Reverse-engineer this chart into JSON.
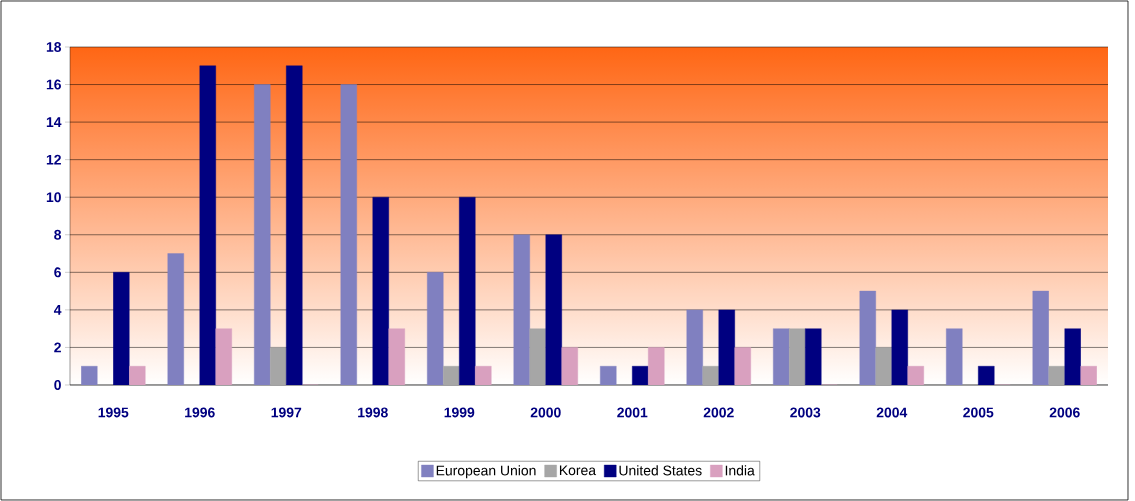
{
  "chart_data": {
    "type": "bar",
    "categories": [
      "1995",
      "1996",
      "1997",
      "1998",
      "1999",
      "2000",
      "2001",
      "2002",
      "2003",
      "2004",
      "2005",
      "2006"
    ],
    "series": [
      {
        "name": "European Union",
        "color": "#8080c0",
        "values": [
          1,
          7,
          16,
          16,
          6,
          8,
          1,
          4,
          3,
          5,
          3,
          5
        ]
      },
      {
        "name": "Korea",
        "color": "#a6a6a6",
        "values": [
          0,
          0,
          2,
          0,
          1,
          3,
          0,
          1,
          3,
          2,
          0,
          1
        ]
      },
      {
        "name": "United States",
        "color": "#000080",
        "values": [
          6,
          17,
          17,
          10,
          10,
          8,
          1,
          4,
          3,
          4,
          1,
          3
        ]
      },
      {
        "name": "India",
        "color": "#d9a0bf",
        "values": [
          1,
          3,
          0,
          3,
          1,
          2,
          2,
          2,
          0,
          1,
          0,
          1
        ]
      }
    ],
    "ylim": [
      0,
      18
    ],
    "yticks": [
      0,
      2,
      4,
      6,
      8,
      10,
      12,
      14,
      16,
      18
    ],
    "grid": "y",
    "legend": "bottom"
  }
}
